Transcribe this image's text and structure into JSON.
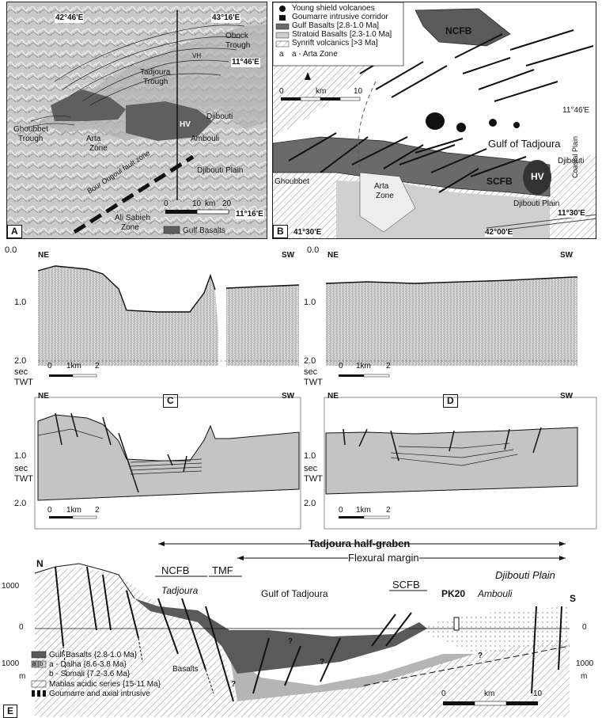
{
  "panelA": {
    "label": "A",
    "coords": {
      "top_left": "42°46'E",
      "top_right": "43°16'E",
      "right_mid": "11°46'E",
      "bottom_right": "11°16'E"
    },
    "places": {
      "obock": "Obock",
      "obock_trough": "Trough",
      "tadjoura": "Tadjoura",
      "tadjoura_trough": "Trough",
      "ghoubbet": "Ghoubbet",
      "ghoubbet_trough": "Trough",
      "arta": "Arta",
      "arta_zone": "Zone",
      "djibouti": "Djibouti",
      "hv": "HV",
      "ambouli": "Ambouli",
      "djibouti_plain": "Djibouti Plain",
      "ali_sabieh": "Ali Sabieh",
      "ali_sabieh_zone": "Zone",
      "fault_label": "Bour Ougoul fault zone",
      "vh": "VH"
    },
    "scale": {
      "ticks": [
        "0",
        "10",
        "20"
      ],
      "unit": "km"
    },
    "legend": "Gulf Basalts"
  },
  "panelB": {
    "label": "B",
    "legend": [
      "Young shield volcanoes",
      "Goumarre intrusive corridor",
      "Gulf Basalts [2.8-1.0 Ma]",
      "Stratoid Basalts [2.3-1.0 Ma]",
      "Synrift volcanics [>3 Ma]",
      "a - Arta Zone"
    ],
    "legend_a": "a",
    "places": {
      "ncfb": "NCFB",
      "scfb": "SCFB",
      "hv": "HV",
      "gulf": "Gulf of Tadjoura",
      "ghoubbet": "Ghoubbet",
      "arta": "Arta",
      "arta_zone": "Zone",
      "djibouti": "Djibouti",
      "coastal_plain": "Coastal Plain",
      "djibouti_plain": "Djibouti Plain"
    },
    "coords": {
      "right_upper": "11°46'E",
      "right_lower": "11°30'E",
      "bottom_left": "41°30'E",
      "bottom_mid": "42°00'E"
    },
    "scale": {
      "ticks": [
        "0",
        "km",
        "10"
      ]
    }
  },
  "seismic": {
    "ticks": [
      "0.0",
      "1.0",
      "2.0"
    ],
    "axis_unit": "sec",
    "axis_title": "TWT",
    "ne": "NE",
    "sw": "SW",
    "scale_ticks": [
      "0",
      "1km",
      "2"
    ]
  },
  "panelC": {
    "label": "C"
  },
  "panelD": {
    "label": "D"
  },
  "panelE": {
    "label": "E",
    "half_graben": "Tadjoura half-graben",
    "flexural": "Flexural margin",
    "ncfb": "NCFB",
    "tmf": "TMF",
    "scfb": "SCFB",
    "tadjoura": "Tadjoura",
    "gulf": "Gulf of Tadjoura",
    "djibouti_plain": "Djibouti Plain",
    "pk20": "PK20",
    "ambouli": "Ambouli",
    "north": "N",
    "south": "S",
    "depth_left": [
      "1000",
      "0",
      "1000",
      "m"
    ],
    "depth_right": [
      "0",
      "1000",
      "m"
    ],
    "question": "?",
    "scale_ticks": [
      "0",
      "km",
      "10"
    ],
    "legend": {
      "gulf_basalts": "Gulf Basalts {2.8-1.0 Ma}",
      "dalha": "a - Dalha    {8.6-3.8 Ma}",
      "somali": "b - Somali   {7.2-3.6 Ma}",
      "basalts": "Basalts",
      "mablas": "Mablas acidic series {15-11 Ma}",
      "goumarre": "Goumarre and axial intrusive",
      "a": "a",
      "b": "b"
    }
  },
  "colors": {
    "dark_basalt": "#5a5a5a",
    "mid_gray": "#a8a8a8",
    "light_gray": "#cfcfcf",
    "hatch": "#7a7a7a"
  }
}
